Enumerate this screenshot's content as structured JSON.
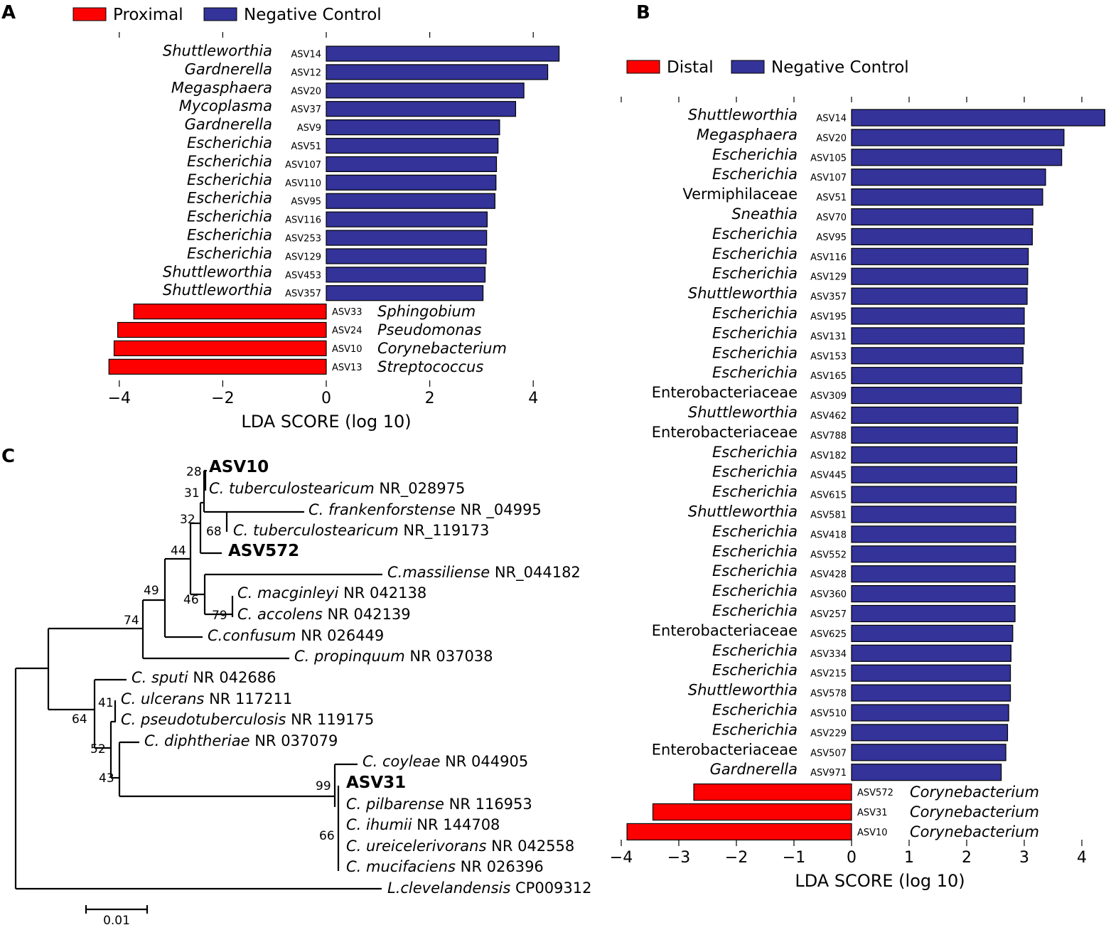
{
  "chart_data": [
    {
      "panel": "A",
      "type": "bar",
      "orientation": "horizontal",
      "xlabel": "LDA SCORE (log 10)",
      "xlim": [
        -4.2,
        4.5
      ],
      "xticks": [
        -4,
        -2,
        0,
        2,
        4
      ],
      "xtick_labels": [
        "−4",
        "−2",
        "0",
        "2",
        "4"
      ],
      "legend": [
        {
          "label": "Proximal",
          "color": "#ff0000"
        },
        {
          "label": "Negative Control",
          "color": "#333399"
        }
      ],
      "bars": [
        {
          "taxon": "Shuttleworthia",
          "asv": "ASV14",
          "value": 4.5,
          "group": "Negative Control",
          "italic": true
        },
        {
          "taxon": "Gardnerella",
          "asv": "ASV12",
          "value": 4.28,
          "group": "Negative Control",
          "italic": true
        },
        {
          "taxon": "Megasphaera",
          "asv": "ASV20",
          "value": 3.82,
          "group": "Negative Control",
          "italic": true
        },
        {
          "taxon": "Mycoplasma",
          "asv": "ASV37",
          "value": 3.66,
          "group": "Negative Control",
          "italic": true
        },
        {
          "taxon": "Gardnerella",
          "asv": "ASV9",
          "value": 3.35,
          "group": "Negative Control",
          "italic": true
        },
        {
          "taxon": "Escherichia",
          "asv": "ASV51",
          "value": 3.32,
          "group": "Negative Control",
          "italic": true
        },
        {
          "taxon": "Escherichia",
          "asv": "ASV107",
          "value": 3.29,
          "group": "Negative Control",
          "italic": true
        },
        {
          "taxon": "Escherichia",
          "asv": "ASV110",
          "value": 3.28,
          "group": "Negative Control",
          "italic": true
        },
        {
          "taxon": "Escherichia",
          "asv": "ASV95",
          "value": 3.26,
          "group": "Negative Control",
          "italic": true
        },
        {
          "taxon": "Escherichia",
          "asv": "ASV116",
          "value": 3.11,
          "group": "Negative Control",
          "italic": true
        },
        {
          "taxon": "Escherichia",
          "asv": "ASV253",
          "value": 3.1,
          "group": "Negative Control",
          "italic": true
        },
        {
          "taxon": "Escherichia",
          "asv": "ASV129",
          "value": 3.09,
          "group": "Negative Control",
          "italic": true
        },
        {
          "taxon": "Shuttleworthia",
          "asv": "ASV453",
          "value": 3.07,
          "group": "Negative Control",
          "italic": true
        },
        {
          "taxon": "Shuttleworthia",
          "asv": "ASV357",
          "value": 3.03,
          "group": "Negative Control",
          "italic": true
        },
        {
          "taxon": "Sphingobium",
          "asv": "ASV33",
          "value": -3.72,
          "group": "Proximal",
          "italic": true
        },
        {
          "taxon": "Pseudomonas",
          "asv": "ASV24",
          "value": -4.03,
          "group": "Proximal",
          "italic": true
        },
        {
          "taxon": "Corynebacterium",
          "asv": "ASV10",
          "value": -4.1,
          "group": "Proximal",
          "italic": true
        },
        {
          "taxon": "Streptococcus",
          "asv": "ASV13",
          "value": -4.2,
          "group": "Proximal",
          "italic": true
        }
      ]
    },
    {
      "panel": "B",
      "type": "bar",
      "orientation": "horizontal",
      "xlabel": "LDA SCORE (log 10)",
      "xlim": [
        -4.0,
        4.4
      ],
      "xticks": [
        -4,
        -3,
        -2,
        -1,
        0,
        1,
        2,
        3,
        4
      ],
      "xtick_labels": [
        "−4",
        "−3",
        "−2",
        "−1",
        "0",
        "1",
        "2",
        "3",
        "4"
      ],
      "legend": [
        {
          "label": "Distal",
          "color": "#ff0000"
        },
        {
          "label": "Negative Control",
          "color": "#333399"
        }
      ],
      "bars": [
        {
          "taxon": "Shuttleworthia",
          "asv": "ASV14",
          "value": 4.4,
          "group": "Negative Control",
          "italic": true
        },
        {
          "taxon": "Megasphaera",
          "asv": "ASV20",
          "value": 3.69,
          "group": "Negative Control",
          "italic": true
        },
        {
          "taxon": "Escherichia",
          "asv": "ASV105",
          "value": 3.65,
          "group": "Negative Control",
          "italic": true
        },
        {
          "taxon": "Escherichia",
          "asv": "ASV107",
          "value": 3.37,
          "group": "Negative Control",
          "italic": true
        },
        {
          "taxon": "Vermiphilaceae",
          "asv": "ASV51",
          "value": 3.32,
          "group": "Negative Control",
          "italic": false
        },
        {
          "taxon": "Sneathia",
          "asv": "ASV70",
          "value": 3.15,
          "group": "Negative Control",
          "italic": true
        },
        {
          "taxon": "Escherichia",
          "asv": "ASV95",
          "value": 3.14,
          "group": "Negative Control",
          "italic": true
        },
        {
          "taxon": "Escherichia",
          "asv": "ASV116",
          "value": 3.07,
          "group": "Negative Control",
          "italic": true
        },
        {
          "taxon": "Escherichia",
          "asv": "ASV129",
          "value": 3.06,
          "group": "Negative Control",
          "italic": true
        },
        {
          "taxon": "Shuttleworthia",
          "asv": "ASV357",
          "value": 3.05,
          "group": "Negative Control",
          "italic": true
        },
        {
          "taxon": "Escherichia",
          "asv": "ASV195",
          "value": 3.0,
          "group": "Negative Control",
          "italic": true
        },
        {
          "taxon": "Escherichia",
          "asv": "ASV131",
          "value": 3.0,
          "group": "Negative Control",
          "italic": true
        },
        {
          "taxon": "Escherichia",
          "asv": "ASV153",
          "value": 2.98,
          "group": "Negative Control",
          "italic": true
        },
        {
          "taxon": "Escherichia",
          "asv": "ASV165",
          "value": 2.96,
          "group": "Negative Control",
          "italic": true
        },
        {
          "taxon": "Enterobacteriaceae",
          "asv": "ASV309",
          "value": 2.95,
          "group": "Negative Control",
          "italic": false
        },
        {
          "taxon": "Shuttleworthia",
          "asv": "ASV462",
          "value": 2.89,
          "group": "Negative Control",
          "italic": true
        },
        {
          "taxon": "Enterobacteriaceae",
          "asv": "ASV788",
          "value": 2.88,
          "group": "Negative Control",
          "italic": false
        },
        {
          "taxon": "Escherichia",
          "asv": "ASV182",
          "value": 2.87,
          "group": "Negative Control",
          "italic": true
        },
        {
          "taxon": "Escherichia",
          "asv": "ASV445",
          "value": 2.87,
          "group": "Negative Control",
          "italic": true
        },
        {
          "taxon": "Escherichia",
          "asv": "ASV615",
          "value": 2.86,
          "group": "Negative Control",
          "italic": true
        },
        {
          "taxon": "Shuttleworthia",
          "asv": "ASV581",
          "value": 2.85,
          "group": "Negative Control",
          "italic": true
        },
        {
          "taxon": "Escherichia",
          "asv": "ASV418",
          "value": 2.85,
          "group": "Negative Control",
          "italic": true
        },
        {
          "taxon": "Escherichia",
          "asv": "ASV552",
          "value": 2.85,
          "group": "Negative Control",
          "italic": true
        },
        {
          "taxon": "Escherichia",
          "asv": "ASV428",
          "value": 2.84,
          "group": "Negative Control",
          "italic": true
        },
        {
          "taxon": "Escherichia",
          "asv": "ASV360",
          "value": 2.84,
          "group": "Negative Control",
          "italic": true
        },
        {
          "taxon": "Escherichia",
          "asv": "ASV257",
          "value": 2.84,
          "group": "Negative Control",
          "italic": true
        },
        {
          "taxon": "Enterobacteriaceae",
          "asv": "ASV625",
          "value": 2.8,
          "group": "Negative Control",
          "italic": false
        },
        {
          "taxon": "Escherichia",
          "asv": "ASV334",
          "value": 2.77,
          "group": "Negative Control",
          "italic": true
        },
        {
          "taxon": "Escherichia",
          "asv": "ASV215",
          "value": 2.76,
          "group": "Negative Control",
          "italic": true
        },
        {
          "taxon": "Shuttleworthia",
          "asv": "ASV578",
          "value": 2.76,
          "group": "Negative Control",
          "italic": true
        },
        {
          "taxon": "Escherichia",
          "asv": "ASV510",
          "value": 2.73,
          "group": "Negative Control",
          "italic": true
        },
        {
          "taxon": "Escherichia",
          "asv": "ASV229",
          "value": 2.71,
          "group": "Negative Control",
          "italic": true
        },
        {
          "taxon": "Enterobacteriaceae",
          "asv": "ASV507",
          "value": 2.68,
          "group": "Negative Control",
          "italic": false
        },
        {
          "taxon": "Gardnerella",
          "asv": "ASV971",
          "value": 2.6,
          "group": "Negative Control",
          "italic": true
        },
        {
          "taxon": "Corynebacterium",
          "asv": "ASV572",
          "value": -2.74,
          "group": "Distal",
          "italic": true
        },
        {
          "taxon": "Corynebacterium",
          "asv": "ASV31",
          "value": -3.45,
          "group": "Distal",
          "italic": true
        },
        {
          "taxon": "Corynebacterium",
          "asv": "ASV10",
          "value": -3.9,
          "group": "Distal",
          "italic": true
        }
      ]
    }
  ],
  "panels": {
    "a": "A",
    "b": "B",
    "c": "C"
  },
  "tree": {
    "scale_label": "0.01",
    "support_values": [
      "28",
      "31",
      "32",
      "68",
      "44",
      "49",
      "46",
      "79",
      "74",
      "64",
      "41",
      "52",
      "43",
      "99",
      "66"
    ],
    "leaves": [
      {
        "species": "",
        "accession": "ASV10",
        "bold": true
      },
      {
        "species": "C. tuberculostearicum",
        "accession": "NR_028975",
        "bold": false
      },
      {
        "species": "C. frankenforstense",
        "accession": "NR _04995",
        "bold": false
      },
      {
        "species": "C. tuberculostearicum",
        "accession": "NR_119173",
        "bold": false
      },
      {
        "species": "",
        "accession": "ASV572",
        "bold": true
      },
      {
        "species": "C.massiliense",
        "accession": "NR_044182",
        "bold": false
      },
      {
        "species": "C. macginleyi",
        "accession": "NR 042138",
        "bold": false
      },
      {
        "species": "C. accolens",
        "accession": "NR 042139",
        "bold": false
      },
      {
        "species": "C.confusum",
        "accession": "NR 026449",
        "bold": false
      },
      {
        "species": "C. propinquum",
        "accession": "NR 037038",
        "bold": false
      },
      {
        "species": "C. sputi",
        "accession": "NR 042686",
        "bold": false
      },
      {
        "species": "C. ulcerans",
        "accession": "NR 117211",
        "bold": false
      },
      {
        "species": "C. pseudotuberculosis",
        "accession": "NR 119175",
        "bold": false
      },
      {
        "species": "C. diphtheriae",
        "accession": "NR 037079",
        "bold": false
      },
      {
        "species": "C. coyleae",
        "accession": "NR 044905",
        "bold": false
      },
      {
        "species": "",
        "accession": "ASV31",
        "bold": true
      },
      {
        "species": "C. pilbarense",
        "accession": "NR 116953",
        "bold": false
      },
      {
        "species": "C. ihumii",
        "accession": "NR 144708",
        "bold": false
      },
      {
        "species": "C. ureicelerivorans",
        "accession": "NR 042558",
        "bold": false
      },
      {
        "species": "C. mucifaciens",
        "accession": "NR 026396",
        "bold": false
      },
      {
        "species": "L.clevelandensis",
        "accession": "CP009312",
        "bold": false
      }
    ]
  }
}
